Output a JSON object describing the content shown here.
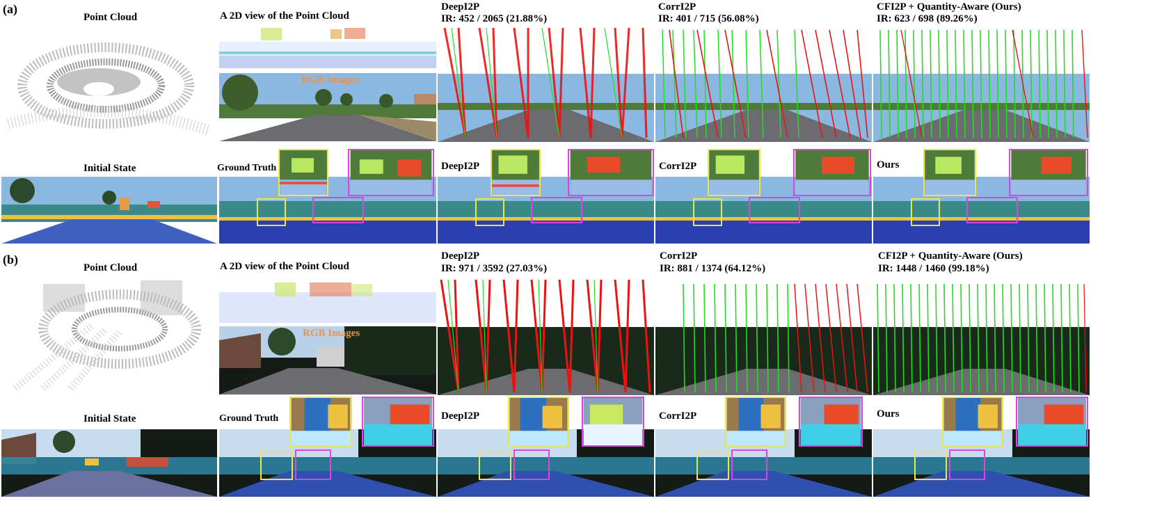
{
  "figure": {
    "rows": [
      {
        "tag": "(a)",
        "point_cloud_label": "Point Cloud",
        "view2d_label": "A 2D view of the Point Cloud",
        "rgb_label": "RGB Images",
        "methods": [
          {
            "name": "DeepI2P",
            "ir": "IR: 452 / 2065  (21.88%)"
          },
          {
            "name": "CorrI2P",
            "ir": "IR: 401 / 715  (56.08%)"
          },
          {
            "name": "CFI2P + Quantity-Aware (Ours)",
            "ir": "IR: 623 / 698  (89.26%)"
          }
        ],
        "initial_label": "Initial State",
        "align_labels": [
          "Ground Truth",
          "DeepI2P",
          "CorrI2P",
          "Ours"
        ]
      },
      {
        "tag": "(b)",
        "point_cloud_label": "Point Cloud",
        "view2d_label": "A 2D view of the Point Cloud",
        "rgb_label": "RGB Images",
        "methods": [
          {
            "name": "DeepI2P",
            "ir": "IR: 971 / 3592   (27.03%)"
          },
          {
            "name": "CorrI2P",
            "ir": "IR: 881 / 1374  (64.12%)"
          },
          {
            "name": "CFI2P + Quantity-Aware (Ours)",
            "ir": "IR: 1448 / 1460  (99.18%)"
          }
        ],
        "initial_label": "Initial State",
        "align_labels": [
          "Ground Truth",
          "DeepI2P",
          "CorrI2P",
          "Ours"
        ]
      }
    ],
    "colors": {
      "inlier": "#22dd22",
      "outlier": "#ee1111",
      "zoom_box_1": "#e8e84a",
      "zoom_box_2": "#dd44dd",
      "rgb_label_color": "#f0914a"
    }
  }
}
